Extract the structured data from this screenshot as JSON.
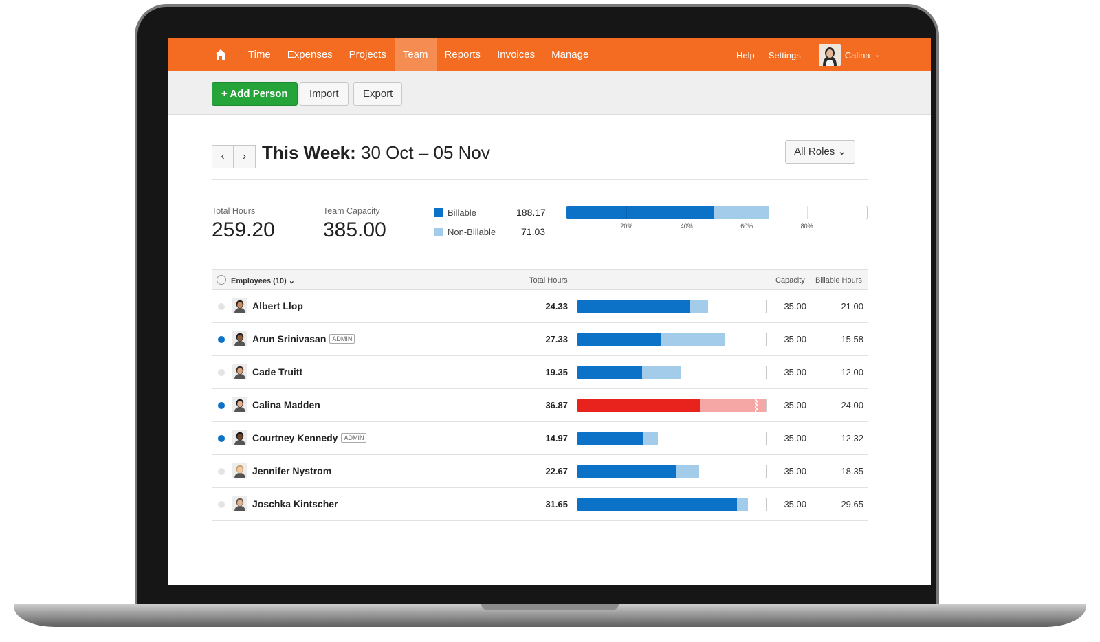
{
  "nav": {
    "items": [
      {
        "label": "Time",
        "active": false
      },
      {
        "label": "Expenses",
        "active": false
      },
      {
        "label": "Projects",
        "active": false
      },
      {
        "label": "Team",
        "active": true
      },
      {
        "label": "Reports",
        "active": false
      },
      {
        "label": "Invoices",
        "active": false
      },
      {
        "label": "Manage",
        "active": false
      }
    ],
    "help": "Help",
    "settings": "Settings",
    "user": "Calina"
  },
  "toolbar": {
    "add_person": "Add Person",
    "import": "Import",
    "export": "Export"
  },
  "week": {
    "title_bold": "This Week:",
    "range": "30 Oct – 05 Nov",
    "roles_filter": "All Roles"
  },
  "summary": {
    "total_hours_label": "Total Hours",
    "total_hours": "259.20",
    "capacity_label": "Team Capacity",
    "capacity": "385.00",
    "billable_label": "Billable",
    "billable": "188.17",
    "nonbillable_label": "Non-Billable",
    "nonbillable": "71.03",
    "bar_billable_fraction": 0.4888,
    "bar_nonbillable_fraction": 0.1845,
    "ticks": [
      "20%",
      "40%",
      "60%",
      "80%"
    ]
  },
  "table": {
    "employees_header": "Employees (10)",
    "total_hours_header": "Total Hours",
    "capacity_header": "Capacity",
    "billable_header": "Billable Hours"
  },
  "employees": [
    {
      "name": "Albert Llop",
      "admin": false,
      "active": false,
      "total": "24.33",
      "capacity": "35.00",
      "billable": "21.00",
      "over": false
    },
    {
      "name": "Arun Srinivasan",
      "admin": true,
      "active": true,
      "total": "27.33",
      "capacity": "35.00",
      "billable": "15.58",
      "over": false
    },
    {
      "name": "Cade Truitt",
      "admin": false,
      "active": false,
      "total": "19.35",
      "capacity": "35.00",
      "billable": "12.00",
      "over": false
    },
    {
      "name": "Calina Madden",
      "admin": false,
      "active": true,
      "total": "36.87",
      "capacity": "35.00",
      "billable": "24.00",
      "over": true
    },
    {
      "name": "Courtney Kennedy",
      "admin": true,
      "active": true,
      "total": "14.97",
      "capacity": "35.00",
      "billable": "12.32",
      "over": false
    },
    {
      "name": "Jennifer Nystrom",
      "admin": false,
      "active": false,
      "total": "22.67",
      "capacity": "35.00",
      "billable": "18.35",
      "over": false
    },
    {
      "name": "Joschka Kintscher",
      "admin": false,
      "active": false,
      "total": "31.65",
      "capacity": "35.00",
      "billable": "29.65",
      "over": false
    }
  ],
  "admin_badge": "ADMIN",
  "colors": {
    "brand": "#f36c21",
    "billable": "#0b72c8",
    "nonbillable": "#a3cbea",
    "over": "#e8231e",
    "over_light": "#f4a7a4",
    "active_dot": "#0b72c8",
    "inactive_dot": "#e4e4e4",
    "add_button": "#25a43a"
  }
}
